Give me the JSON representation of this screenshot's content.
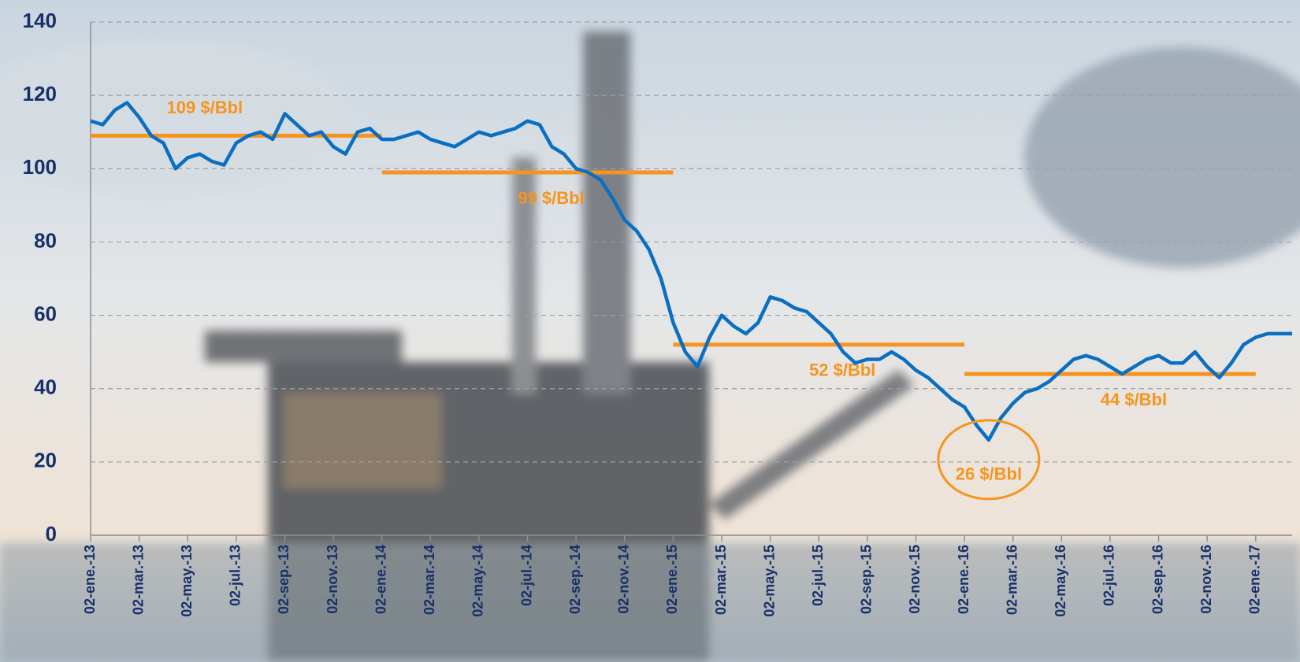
{
  "chart_data": {
    "type": "line",
    "categories": [
      "02-ene.-13",
      null,
      null,
      null,
      "02-mar.-13",
      null,
      null,
      null,
      "02-may.-13",
      null,
      null,
      null,
      "02-jul.-13",
      null,
      null,
      null,
      "02-sep.-13",
      null,
      null,
      null,
      "02-nov.-13",
      null,
      null,
      null,
      "02-ene.-14",
      null,
      null,
      null,
      "02-mar.-14",
      null,
      null,
      null,
      "02-may.-14",
      null,
      null,
      null,
      "02-jul.-14",
      null,
      null,
      null,
      "02-sep.-14",
      null,
      null,
      null,
      "02-nov.-14",
      null,
      null,
      null,
      "02-ene.-15",
      null,
      null,
      null,
      "02-mar.-15",
      null,
      null,
      null,
      "02-may.-15",
      null,
      null,
      null,
      "02-jul.-15",
      null,
      null,
      null,
      "02-sep.-15",
      null,
      null,
      null,
      "02-nov.-15",
      null,
      null,
      null,
      "02-ene.-16",
      null,
      null,
      null,
      "02-mar.-16",
      null,
      null,
      null,
      "02-may.-16",
      null,
      null,
      null,
      "02-jul.-16",
      null,
      null,
      null,
      "02-sep.-16",
      null,
      null,
      null,
      "02-nov.-16",
      null,
      null,
      null,
      "02-ene.-17",
      null,
      null,
      null
    ],
    "series": [
      {
        "color": "#0a6fc2",
        "values": [
          113,
          112,
          116,
          118,
          114,
          109,
          107,
          100,
          103,
          104,
          102,
          101,
          107,
          109,
          110,
          108,
          115,
          112,
          109,
          110,
          106,
          104,
          110,
          111,
          108,
          108,
          109,
          110,
          108,
          107,
          106,
          108,
          110,
          109,
          110,
          111,
          113,
          112,
          106,
          104,
          100,
          99,
          97,
          92,
          86,
          83,
          78,
          70,
          58,
          50,
          46,
          54,
          60,
          57,
          55,
          58,
          65,
          64,
          62,
          61,
          58,
          55,
          50,
          47,
          48,
          48,
          50,
          48,
          45,
          43,
          40,
          37,
          35,
          30,
          26,
          32,
          36,
          39,
          40,
          42,
          45,
          48,
          49,
          48,
          46,
          44,
          46,
          48,
          49,
          47,
          47,
          50,
          46,
          43,
          47,
          52,
          54,
          55,
          55,
          55
        ]
      }
    ],
    "ylim": [
      0,
      140
    ],
    "yticks": [
      0,
      20,
      40,
      60,
      80,
      100,
      120,
      140
    ],
    "grid": true,
    "averages": [
      {
        "label": "109 $/Bbl",
        "value": 109,
        "start": "02-ene.-13",
        "end": "02-ene.-14"
      },
      {
        "label": "99 $/Bbl",
        "value": 99,
        "start": "02-ene.-14",
        "end": "02-ene.-15"
      },
      {
        "label": "52 $/Bbl",
        "value": 52,
        "start": "02-ene.-15",
        "end": "02-ene.-16"
      },
      {
        "label": "44 $/Bbl",
        "value": 44,
        "start": "02-ene.-16",
        "end": "02-ene.-17"
      }
    ],
    "low": {
      "label": "26 $/Bbl",
      "value": 26
    },
    "annotation_color": "#f7941d"
  }
}
